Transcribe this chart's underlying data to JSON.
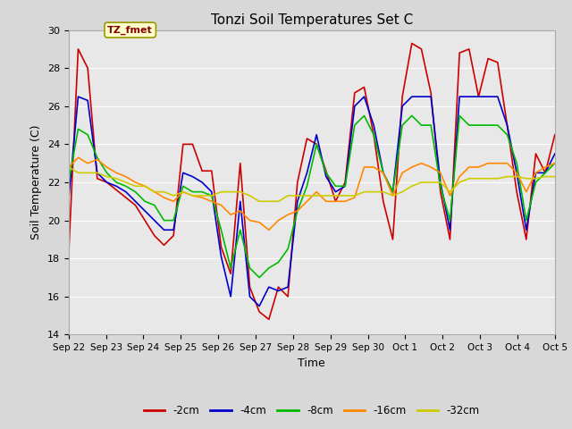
{
  "title": "Tonzi Soil Temperatures Set C",
  "xlabel": "Time",
  "ylabel": "Soil Temperature (C)",
  "ylim": [
    14,
    30
  ],
  "annotation_text": "TZ_fmet",
  "series_labels": [
    "-2cm",
    "-4cm",
    "-8cm",
    "-16cm",
    "-32cm"
  ],
  "series_colors": [
    "#cc0000",
    "#0000cc",
    "#00bb00",
    "#ff8800",
    "#cccc00"
  ],
  "x_tick_labels": [
    "Sep 22",
    "Sep 23",
    "Sep 24",
    "Sep 25",
    "Sep 26",
    "Sep 27",
    "Sep 28",
    "Sep 29",
    "Sep 30",
    "Oct 1",
    "Oct 2",
    "Oct 3",
    "Oct 4",
    "Oct 5"
  ],
  "x_tick_positions": [
    0,
    1,
    2,
    3,
    4,
    5,
    6,
    7,
    8,
    9,
    10,
    11,
    12,
    13
  ],
  "background_color": "#d8d8d8",
  "plot_bg_color": "#e8e8e8",
  "grid_color": "#ffffff",
  "series_2cm": [
    18.2,
    29.0,
    28.0,
    22.2,
    22.0,
    21.6,
    21.2,
    20.8,
    20.0,
    19.2,
    18.7,
    19.2,
    24.0,
    24.0,
    22.6,
    22.6,
    18.6,
    17.2,
    23.0,
    16.5,
    15.2,
    14.8,
    16.5,
    16.0,
    22.0,
    24.3,
    24.0,
    22.6,
    21.0,
    22.0,
    26.7,
    27.0,
    24.5,
    21.0,
    19.0,
    26.5,
    29.3,
    29.0,
    26.7,
    21.5,
    19.0,
    28.8,
    29.0,
    26.5,
    28.5,
    28.3,
    25.0,
    21.5,
    19.0,
    23.5,
    22.5,
    24.5
  ],
  "series_4cm": [
    21.1,
    26.5,
    26.3,
    22.5,
    22.0,
    21.8,
    21.5,
    21.0,
    20.5,
    20.0,
    19.5,
    19.5,
    22.5,
    22.3,
    22.0,
    21.5,
    18.1,
    16.0,
    21.0,
    16.0,
    15.5,
    16.5,
    16.3,
    16.5,
    21.0,
    22.5,
    24.5,
    22.3,
    21.5,
    21.8,
    26.0,
    26.5,
    25.0,
    22.5,
    21.5,
    26.0,
    26.5,
    26.5,
    26.5,
    22.0,
    19.5,
    26.5,
    26.5,
    26.5,
    26.5,
    26.5,
    25.0,
    22.5,
    19.5,
    22.5,
    22.5,
    23.5
  ],
  "series_8cm": [
    22.0,
    24.8,
    24.5,
    23.3,
    22.5,
    22.0,
    21.8,
    21.5,
    21.0,
    20.8,
    20.0,
    20.0,
    21.8,
    21.5,
    21.5,
    21.3,
    19.5,
    17.5,
    19.5,
    17.5,
    17.0,
    17.5,
    17.8,
    18.5,
    20.5,
    21.8,
    24.0,
    22.5,
    21.8,
    21.8,
    25.0,
    25.5,
    24.5,
    22.5,
    21.5,
    25.0,
    25.5,
    25.0,
    25.0,
    21.8,
    20.0,
    25.5,
    25.0,
    25.0,
    25.0,
    25.0,
    24.5,
    23.0,
    20.0,
    22.0,
    22.5,
    23.0
  ],
  "series_16cm": [
    22.8,
    23.3,
    23.0,
    23.2,
    22.8,
    22.5,
    22.3,
    22.0,
    21.8,
    21.5,
    21.2,
    21.0,
    21.5,
    21.3,
    21.2,
    21.0,
    20.8,
    20.3,
    20.5,
    20.0,
    19.9,
    19.5,
    20.0,
    20.3,
    20.5,
    21.0,
    21.5,
    21.0,
    21.0,
    21.0,
    21.2,
    22.8,
    22.8,
    22.5,
    21.3,
    22.5,
    22.8,
    23.0,
    22.8,
    22.5,
    21.3,
    22.3,
    22.8,
    22.8,
    23.0,
    23.0,
    23.0,
    22.5,
    21.5,
    22.5,
    22.8,
    23.0
  ],
  "series_32cm": [
    22.8,
    22.5,
    22.5,
    22.5,
    22.3,
    22.2,
    22.0,
    21.8,
    21.8,
    21.5,
    21.5,
    21.3,
    21.5,
    21.3,
    21.3,
    21.3,
    21.5,
    21.5,
    21.5,
    21.3,
    21.0,
    21.0,
    21.0,
    21.3,
    21.3,
    21.3,
    21.3,
    21.3,
    21.3,
    21.3,
    21.3,
    21.5,
    21.5,
    21.5,
    21.3,
    21.5,
    21.8,
    22.0,
    22.0,
    22.0,
    21.5,
    22.0,
    22.2,
    22.2,
    22.2,
    22.2,
    22.3,
    22.3,
    22.2,
    22.2,
    22.3,
    22.3
  ]
}
